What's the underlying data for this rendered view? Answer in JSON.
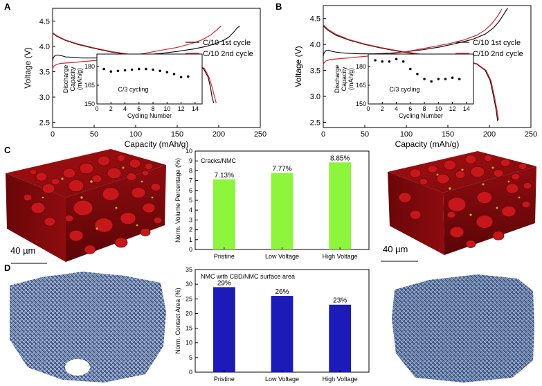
{
  "panel_labels": {
    "a": "A",
    "b": "B",
    "c": "C",
    "d": "D"
  },
  "scale_bars": {
    "left": "40 µm",
    "right": "40 µm"
  },
  "legend": {
    "black": "C/10 1st cycle",
    "red": "C/10 2nd cycle"
  },
  "colors": {
    "first_cycle": "#111111",
    "second_cycle": "#d9262b",
    "nmc_red": "#b81414",
    "crack_yellow": "#c6d42a",
    "cbd_blue": "#1f3d77",
    "bar_green": "#8cf53c",
    "bar_blue": "#1c1ab8"
  },
  "chart_data": [
    {
      "id": "A",
      "type": "line",
      "xlabel": "Capacity (mAh/g)",
      "ylabel": "Voltage (V)",
      "xlim": [
        0,
        250
      ],
      "ylim": [
        2.4,
        4.75
      ],
      "xticks": [
        "0",
        "50",
        "100",
        "150",
        "200",
        "250"
      ],
      "yticks": [
        "2.5",
        "3.0",
        "3.5",
        "4.0",
        "4.5"
      ],
      "series": [
        {
          "name": "C/10 1st cycle charge",
          "color": "#111111",
          "x": [
            0,
            1,
            3,
            6,
            10,
            16,
            20,
            26,
            35,
            50,
            70,
            90,
            110,
            130,
            150,
            170,
            185,
            195,
            205,
            212,
            218,
            222,
            225
          ],
          "y": [
            3.72,
            3.78,
            3.82,
            3.83,
            3.82,
            3.79,
            3.79,
            3.78,
            3.77,
            3.77,
            3.78,
            3.8,
            3.83,
            3.86,
            3.9,
            3.95,
            4.0,
            4.05,
            4.11,
            4.18,
            4.28,
            4.36,
            4.4
          ]
        },
        {
          "name": "C/10 1st cycle discharge",
          "color": "#111111",
          "x": [
            0,
            5,
            15,
            30,
            50,
            70,
            90,
            110,
            130,
            150,
            165,
            175,
            182,
            187,
            190,
            192,
            194
          ],
          "y": [
            4.26,
            4.2,
            4.12,
            4.04,
            3.96,
            3.89,
            3.84,
            3.8,
            3.76,
            3.72,
            3.68,
            3.63,
            3.55,
            3.4,
            3.2,
            3.0,
            2.88
          ]
        },
        {
          "name": "C/10 2nd cycle charge",
          "color": "#d9262b",
          "x": [
            0,
            1,
            3,
            8,
            15,
            30,
            50,
            70,
            90,
            110,
            130,
            150,
            170,
            180,
            190,
            196,
            200,
            203
          ],
          "y": [
            3.55,
            3.6,
            3.63,
            3.66,
            3.67,
            3.69,
            3.72,
            3.76,
            3.81,
            3.86,
            3.92,
            3.98,
            4.07,
            4.13,
            4.22,
            4.3,
            4.36,
            4.4
          ]
        },
        {
          "name": "C/10 2nd cycle discharge",
          "color": "#d9262b",
          "x": [
            0,
            5,
            15,
            30,
            50,
            70,
            90,
            110,
            130,
            150,
            165,
            175,
            183,
            188,
            192,
            195,
            197
          ],
          "y": [
            4.27,
            4.21,
            4.13,
            4.05,
            3.97,
            3.9,
            3.85,
            3.81,
            3.77,
            3.73,
            3.69,
            3.64,
            3.56,
            3.4,
            3.2,
            3.0,
            2.88
          ]
        }
      ],
      "inset": {
        "type": "scatter",
        "xlabel": "Cycling Number",
        "ylabel_lines": [
          "Discharge",
          "Capacity",
          "(mAh/g)"
        ],
        "annotation": "C/3 cycling",
        "xlim": [
          0,
          15
        ],
        "ylim": [
          150,
          190
        ],
        "xticks": [
          "0",
          "2",
          "4",
          "6",
          "8",
          "10",
          "12",
          "14"
        ],
        "yticks": [
          "150",
          "165",
          "180"
        ],
        "x": [
          1,
          2,
          3,
          4,
          5,
          6,
          7,
          8,
          9,
          10,
          11,
          12,
          13
        ],
        "y": [
          178,
          176,
          176.5,
          177,
          177.5,
          178,
          178,
          177.5,
          176.5,
          175.5,
          174,
          171.5,
          172
        ]
      }
    },
    {
      "id": "B",
      "type": "line",
      "xlabel": "Capacity (mAh/g)",
      "ylabel": "Voltage (V)",
      "xlim": [
        0,
        250
      ],
      "ylim": [
        2.4,
        4.75
      ],
      "xticks": [
        "0",
        "50",
        "100",
        "150",
        "200",
        "250"
      ],
      "yticks": [
        "2.5",
        "3.0",
        "3.5",
        "4.0",
        "4.5"
      ],
      "series": [
        {
          "name": "C/10 1st cycle charge",
          "color": "#111111",
          "x": [
            0,
            1,
            3,
            6,
            10,
            16,
            22,
            30,
            45,
            60,
            80,
            100,
            120,
            140,
            160,
            180,
            195,
            205,
            212,
            218,
            222
          ],
          "y": [
            3.78,
            3.84,
            3.88,
            3.89,
            3.87,
            3.85,
            3.84,
            3.83,
            3.82,
            3.82,
            3.83,
            3.86,
            3.9,
            3.95,
            4.02,
            4.1,
            4.2,
            4.32,
            4.45,
            4.6,
            4.7
          ]
        },
        {
          "name": "C/10 1st cycle discharge",
          "color": "#111111",
          "x": [
            0,
            5,
            15,
            30,
            50,
            70,
            90,
            110,
            130,
            150,
            170,
            185,
            195,
            201,
            205,
            208,
            210
          ],
          "y": [
            4.36,
            4.28,
            4.18,
            4.09,
            4.0,
            3.93,
            3.87,
            3.82,
            3.77,
            3.73,
            3.68,
            3.62,
            3.5,
            3.3,
            3.0,
            2.75,
            2.52
          ]
        },
        {
          "name": "C/10 2nd cycle charge",
          "color": "#d9262b",
          "x": [
            0,
            1,
            3,
            8,
            15,
            30,
            50,
            70,
            90,
            110,
            130,
            150,
            170,
            185,
            195,
            203,
            210,
            215
          ],
          "y": [
            3.6,
            3.65,
            3.68,
            3.71,
            3.72,
            3.74,
            3.77,
            3.8,
            3.84,
            3.89,
            3.95,
            4.01,
            4.09,
            4.18,
            4.28,
            4.4,
            4.55,
            4.68
          ]
        },
        {
          "name": "C/10 2nd cycle discharge",
          "color": "#d9262b",
          "x": [
            0,
            5,
            15,
            30,
            50,
            70,
            90,
            110,
            130,
            150,
            170,
            185,
            196,
            202,
            206,
            209,
            211
          ],
          "y": [
            4.38,
            4.3,
            4.2,
            4.1,
            4.01,
            3.94,
            3.88,
            3.83,
            3.78,
            3.74,
            3.69,
            3.63,
            3.5,
            3.3,
            3.0,
            2.75,
            2.55
          ]
        }
      ],
      "inset": {
        "type": "scatter",
        "xlabel": "Cycling Number",
        "ylabel_lines": [
          "Discharge",
          "Capacity",
          "(mAh/g)"
        ],
        "annotation": "C/3 cycling",
        "xlim": [
          0,
          15
        ],
        "ylim": [
          150,
          190
        ],
        "xticks": [
          "0",
          "2",
          "4",
          "6",
          "8",
          "10",
          "12",
          "14"
        ],
        "yticks": [
          "150",
          "165",
          "180"
        ],
        "x": [
          1,
          2,
          3,
          4,
          5,
          6,
          7,
          8,
          9,
          10,
          11,
          12,
          13
        ],
        "y": [
          185,
          184,
          184,
          186,
          184,
          178,
          174,
          170,
          168,
          170,
          170,
          171,
          170
        ]
      }
    },
    {
      "id": "C",
      "type": "bar",
      "title": "Cracks/NMC",
      "ylabel": "Norm. Volume Percentage (%)",
      "categories": [
        "Pristine",
        "Low Voltage",
        "High Voltage"
      ],
      "values": [
        7.13,
        7.77,
        8.85
      ],
      "value_labels": [
        "7.13%",
        "7.77%",
        "8.85%"
      ],
      "ylim": [
        0,
        10
      ],
      "yticks": [
        "0",
        "1",
        "2",
        "3",
        "4",
        "5",
        "6",
        "7",
        "8",
        "9",
        "10"
      ],
      "color": "#8cf53c"
    },
    {
      "id": "D",
      "type": "bar",
      "title": "NMC with CBD/NMC surface area",
      "ylabel": "Norm. Contact Area (%)",
      "categories": [
        "Pristine",
        "Low Voltage",
        "High Voltage"
      ],
      "values": [
        29,
        26,
        23
      ],
      "value_labels": [
        "29%",
        "26%",
        "23%"
      ],
      "ylim": [
        0,
        35
      ],
      "yticks": [
        "0",
        "5",
        "10",
        "15",
        "20",
        "25",
        "30",
        "35"
      ],
      "color": "#1c1ab8"
    }
  ]
}
